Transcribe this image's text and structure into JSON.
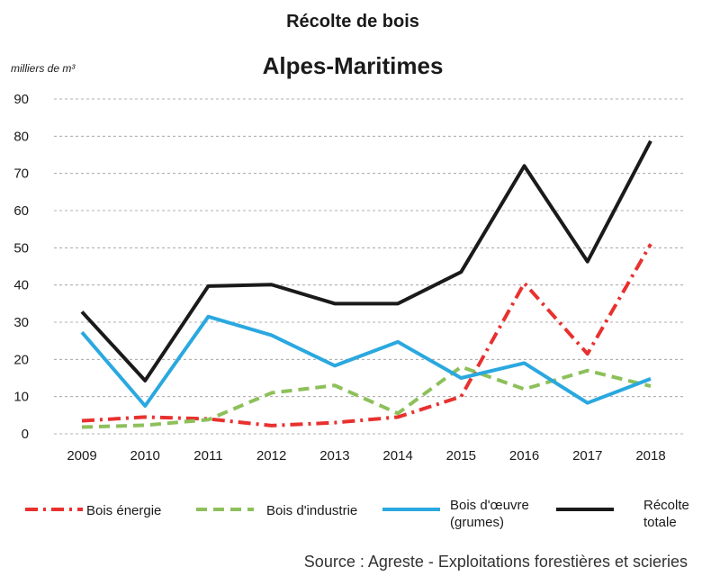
{
  "chart_data": {
    "type": "line",
    "title": "Récolte de bois",
    "subtitle": "Alpes-Maritimes",
    "y_label": "milliers de m³",
    "source": "Source : Agreste - Exploitations forestières et scieries",
    "categories": [
      "2009",
      "2010",
      "2011",
      "2012",
      "2013",
      "2014",
      "2015",
      "2016",
      "2017",
      "2018"
    ],
    "series": [
      {
        "name": "Bois énergie",
        "color": "#e8312f",
        "style": "dashdot",
        "values": [
          3.5,
          4.5,
          4,
          2.2,
          3,
          4.5,
          10,
          40.5,
          21.5,
          51
        ]
      },
      {
        "name": "Bois d'industrie",
        "color": "#8dc05a",
        "style": "dashed",
        "values": [
          1.8,
          2.3,
          3.8,
          11,
          13,
          5.5,
          18,
          12,
          17,
          12.8
        ]
      },
      {
        "name": "Bois d'œuvre (grumes)",
        "color": "#2aa8df",
        "style": "solid",
        "values": [
          27.3,
          7.5,
          31.5,
          26.5,
          18.3,
          24.7,
          15,
          19,
          8.3,
          14.8
        ]
      },
      {
        "name": "Récolte totale",
        "color": "#1a1a1a",
        "style": "solid",
        "values": [
          32.8,
          14.3,
          39.7,
          40.1,
          35,
          35,
          43.5,
          72,
          46.3,
          78.7
        ]
      }
    ],
    "ylim": [
      0,
      90
    ],
    "yticks": [
      0,
      10,
      20,
      30,
      40,
      50,
      60,
      70,
      80,
      90
    ],
    "grid": true
  }
}
